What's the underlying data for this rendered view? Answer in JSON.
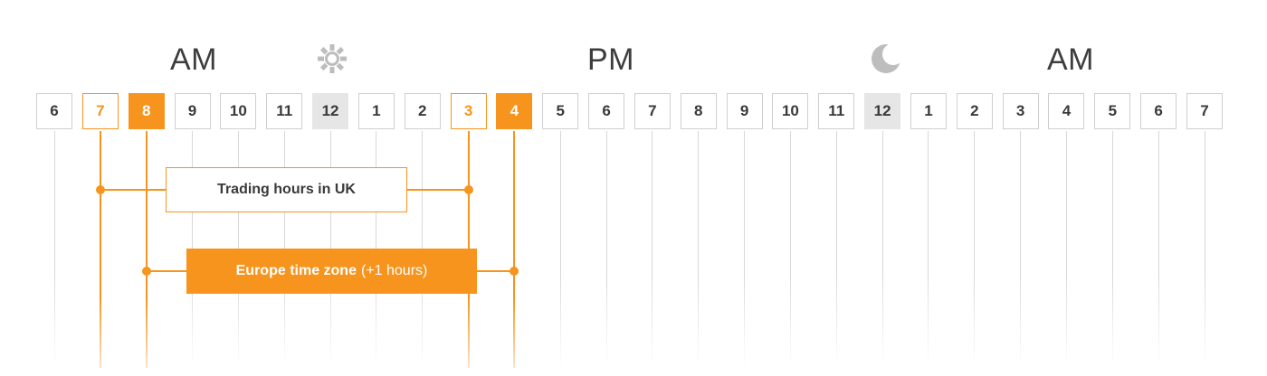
{
  "header": {
    "am_left": "AM",
    "pm": "PM",
    "am_right": "AM",
    "sun_icon": "sun-icon",
    "moon_icon": "moon-icon"
  },
  "timeline": {
    "hours": [
      "6",
      "7",
      "8",
      "9",
      "10",
      "11",
      "12",
      "1",
      "2",
      "3",
      "4",
      "5",
      "6",
      "7",
      "8",
      "9",
      "10",
      "11",
      "12",
      "1",
      "2",
      "3",
      "4",
      "5",
      "6",
      "7"
    ],
    "noon_index": 6,
    "midnight_index": 18,
    "uk_open_index": 1,
    "uk_close_index": 9,
    "europe_open_index": 2,
    "europe_close_index": 10
  },
  "labels": {
    "uk": "Trading hours in UK",
    "europe_strong": "Europe time zone",
    "europe_light": "(+1 hours)"
  },
  "colors": {
    "accent": "#f7941d",
    "text": "#3a3a3a",
    "grid": "#d8d8d8",
    "highlight": "#e6e6e6"
  }
}
